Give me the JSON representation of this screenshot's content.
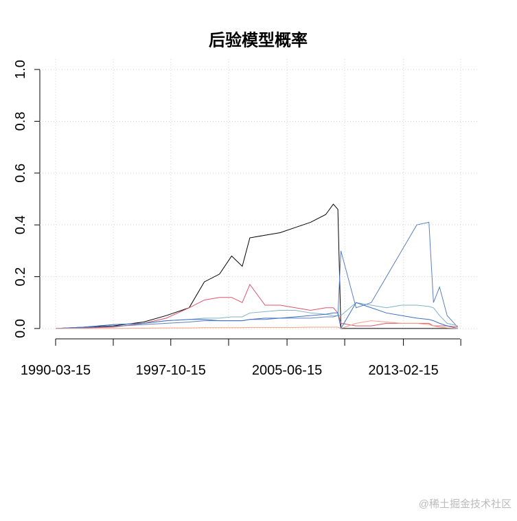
{
  "chart_data": {
    "type": "line",
    "title": "后验模型概率",
    "x": [
      1990.2,
      1992,
      1994,
      1996,
      1997.5,
      1999,
      2000,
      2001,
      2001.8,
      2002.5,
      2003,
      2004,
      2005,
      2006,
      2007,
      2008,
      2008.5,
      2008.8,
      2009,
      2010,
      2011,
      2012,
      2013,
      2014,
      2014.8,
      2015.1,
      2015.5,
      2016,
      2016.7
    ],
    "series": [
      {
        "color": "#000000",
        "values": [
          0,
          0.005,
          0.01,
          0.025,
          0.05,
          0.08,
          0.18,
          0.21,
          0.28,
          0.24,
          0.35,
          0.36,
          0.37,
          0.39,
          0.41,
          0.44,
          0.48,
          0.46,
          0,
          0,
          0,
          0,
          0,
          0,
          0,
          0,
          0,
          0,
          0
        ]
      },
      {
        "color": "#df536b",
        "values": [
          0,
          0.002,
          0.005,
          0.02,
          0.04,
          0.08,
          0.11,
          0.12,
          0.12,
          0.1,
          0.17,
          0.09,
          0.09,
          0.08,
          0.07,
          0.08,
          0.08,
          0.06,
          0.02,
          0.01,
          0.01,
          0.02,
          0.02,
          0.02,
          0.02,
          0.01,
          0.01,
          0.01,
          0.005
        ]
      },
      {
        "color": "#5b7fbf",
        "values": [
          0,
          0.003,
          0.008,
          0.015,
          0.02,
          0.025,
          0.03,
          0.03,
          0.03,
          0.03,
          0.035,
          0.035,
          0.04,
          0.04,
          0.04,
          0.045,
          0.045,
          0.05,
          0.3,
          0.08,
          0.1,
          0.2,
          0.3,
          0.4,
          0.41,
          0.1,
          0.16,
          0.05,
          0.005
        ]
      },
      {
        "color": "#7fb2c8",
        "values": [
          0,
          0.005,
          0.015,
          0.02,
          0.03,
          0.035,
          0.04,
          0.04,
          0.045,
          0.045,
          0.06,
          0.065,
          0.07,
          0.07,
          0.06,
          0.055,
          0.05,
          0.05,
          0.05,
          0.1,
          0.09,
          0.08,
          0.09,
          0.09,
          0.085,
          0.08,
          0.05,
          0.02,
          0.01
        ]
      },
      {
        "color": "#3d6fc4",
        "values": [
          0,
          0.005,
          0.015,
          0.02,
          0.03,
          0.035,
          0.035,
          0.03,
          0.03,
          0.03,
          0.035,
          0.04,
          0.04,
          0.045,
          0.05,
          0.055,
          0.06,
          0.06,
          0,
          0.1,
          0.08,
          0.06,
          0.05,
          0.04,
          0.035,
          0.03,
          0.02,
          0.01,
          0
        ]
      },
      {
        "color": "#f0a080",
        "values": [
          0,
          0,
          0,
          0.001,
          0.002,
          0.002,
          0.003,
          0.003,
          0.003,
          0.003,
          0.004,
          0.004,
          0.004,
          0.004,
          0.005,
          0.005,
          0.005,
          0.005,
          0,
          0.02,
          0.03,
          0.025,
          0.02,
          0.02,
          0.015,
          0.01,
          0.005,
          0.002,
          0
        ]
      }
    ],
    "xlim": [
      1989.16,
      2017.98
    ],
    "xticks": [
      {
        "value": 1990.2,
        "label": "1990-03-15"
      },
      {
        "value": 1994.0,
        "label": null
      },
      {
        "value": 1997.79,
        "label": "1997-10-15"
      },
      {
        "value": 2001.6,
        "label": null
      },
      {
        "value": 2005.45,
        "label": "2005-06-15"
      },
      {
        "value": 2009.25,
        "label": null
      },
      {
        "value": 2013.12,
        "label": "2013-02-15"
      },
      {
        "value": 2016.9,
        "label": null
      }
    ],
    "ylim": [
      -0.04,
      1.04
    ],
    "yticks": [
      {
        "value": 0,
        "label": "0.0"
      },
      0.2,
      0.4,
      0.6,
      0.8,
      {
        "value": 1,
        "label": "1.0"
      }
    ],
    "grid": true,
    "watermark": "@稀土掘金技术社区"
  }
}
